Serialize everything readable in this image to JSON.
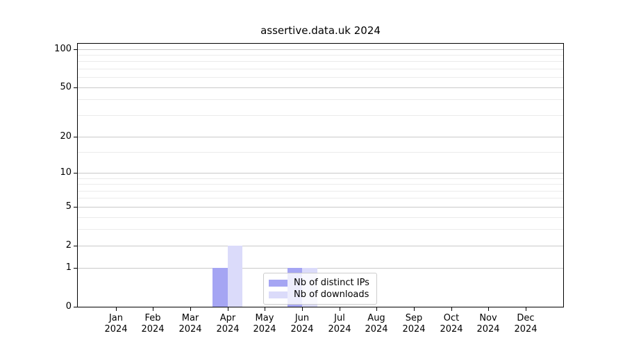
{
  "chart_data": {
    "type": "bar",
    "title": "assertive.data.uk 2024",
    "categories": [
      "Jan",
      "Feb",
      "Mar",
      "Apr",
      "May",
      "Jun",
      "Jul",
      "Aug",
      "Sep",
      "Oct",
      "Nov",
      "Dec"
    ],
    "x_year": "2024",
    "series": [
      {
        "name": "Nb of distinct IPs",
        "color": "#a5a5f3",
        "values": [
          0,
          0,
          0,
          1,
          0,
          1,
          0,
          0,
          0,
          0,
          0,
          0
        ]
      },
      {
        "name": "Nb of downloads",
        "color": "#dbdbfa",
        "values": [
          0,
          0,
          0,
          2,
          0,
          1,
          0,
          0,
          0,
          0,
          0,
          0
        ]
      }
    ],
    "y_axis": {
      "scale": "log1p",
      "major_ticks": [
        0,
        1,
        2,
        5,
        10,
        20,
        50,
        100
      ],
      "minor_ticks": [
        3,
        4,
        6,
        7,
        8,
        9,
        15,
        30,
        40,
        60,
        70,
        80,
        90
      ],
      "ylim": [
        0,
        110
      ]
    },
    "grid": {
      "major_color": "#c9c9c9",
      "minor_color": "#ebebeb"
    },
    "legend": {
      "position": "lower center"
    },
    "axis_color": "#000000"
  }
}
